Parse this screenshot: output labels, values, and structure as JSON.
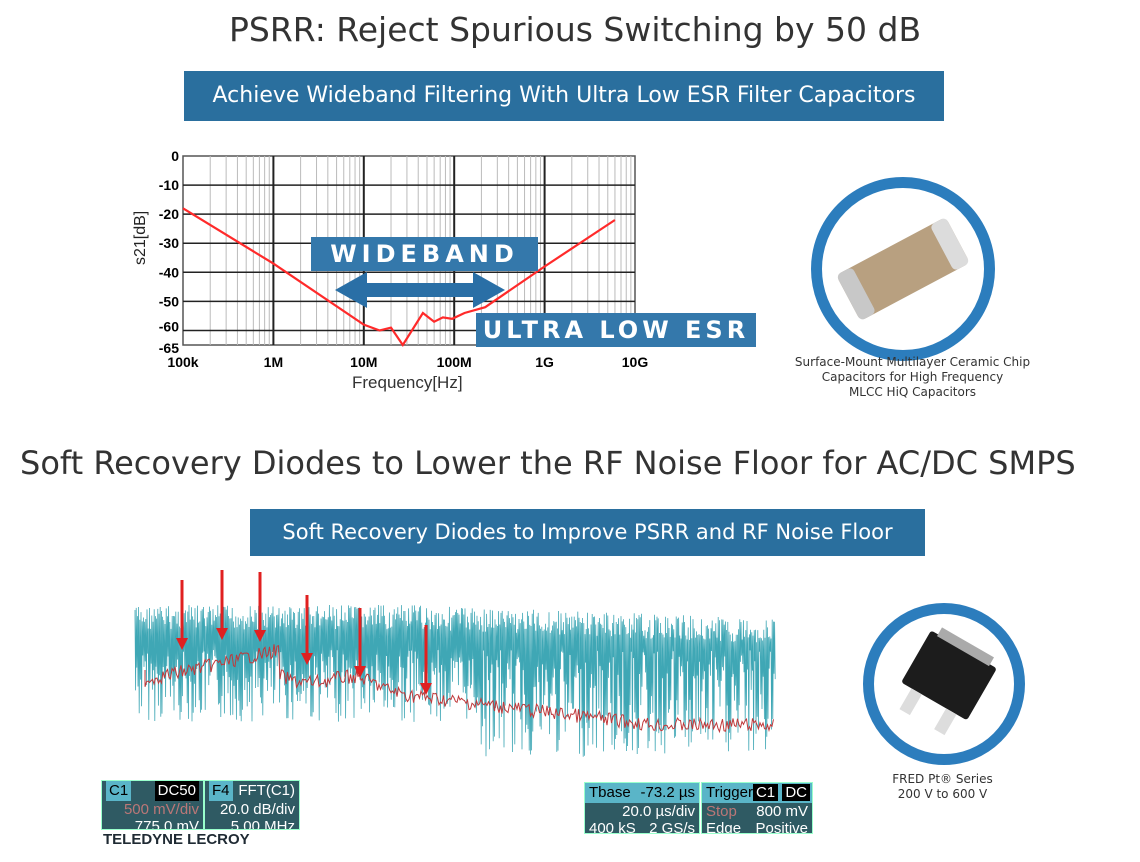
{
  "top": {
    "title": "PSRR: Reject Spurious Switching by 50 dB",
    "banner": "Achieve Wideband Filtering With Ultra Low ESR Filter Capacitors",
    "wideband_label": "WIDEBAND",
    "esr_label": "ULTRA LOW ESR",
    "capacitor_caption": [
      "Surface-Mount Multilayer Ceramic Chip",
      "Capacitors for High Frequency",
      "MLCC HiQ Capacitors"
    ]
  },
  "chart_data": {
    "type": "line",
    "xlabel": "Frequency[Hz]",
    "ylabel": "s21[dB]",
    "xscale": "log",
    "xlim": [
      100000,
      10000000000
    ],
    "ylim": [
      -65,
      0
    ],
    "xticks": [
      "100k",
      "1M",
      "10M",
      "100M",
      "1G",
      "10G"
    ],
    "yticks": [
      "0",
      "-10",
      "-20",
      "-30",
      "-40",
      "-50",
      "-60",
      "-65"
    ],
    "grid": true,
    "color": "#ff2a2a",
    "x": [
      100000,
      1000000,
      10000000,
      15000000,
      20000000,
      27000000,
      45000000,
      60000000,
      75000000,
      95000000,
      130000000,
      220000000,
      1000000000,
      6000000000
    ],
    "y": [
      -18,
      -37,
      -58,
      -60,
      -59,
      -65,
      -54,
      -57,
      -55.5,
      -56,
      -54,
      -52,
      -38,
      -22
    ]
  },
  "bottom": {
    "title": "Soft Recovery Diodes to Lower the RF Noise Floor for AC/DC SMPS",
    "banner": "Soft Recovery Diodes to Improve PSRR and RF Noise Floor",
    "diode_caption": [
      "FRED Pt® Series",
      "200 V to 600 V"
    ],
    "scope": {
      "c1": "C1",
      "c1_coupling": "DC50",
      "c1_scale": "500 mV/div",
      "c1_offset": "775.0 mV",
      "f4": "F4",
      "f4_func": "FFT(C1)",
      "f4_scale": "20.0 dB/div",
      "f4_center": "5.00 MHz",
      "tbase": "Tbase",
      "tbase_val": "-73.2 µs",
      "tdiv": "20.0 µs/div",
      "samples": "400 kS",
      "rate": "2 GS/s",
      "trigger": "Trigger",
      "trig_ch": "C1",
      "trig_cp": "DC",
      "trig_mode": "Stop",
      "trig_level": "800 mV",
      "trig_type": "Edge",
      "trig_slope": "Positive",
      "brand": "TELEDYNE LECROY",
      "colors": {
        "c1": "#3fa7b5",
        "fft": "#c0393b"
      }
    }
  }
}
